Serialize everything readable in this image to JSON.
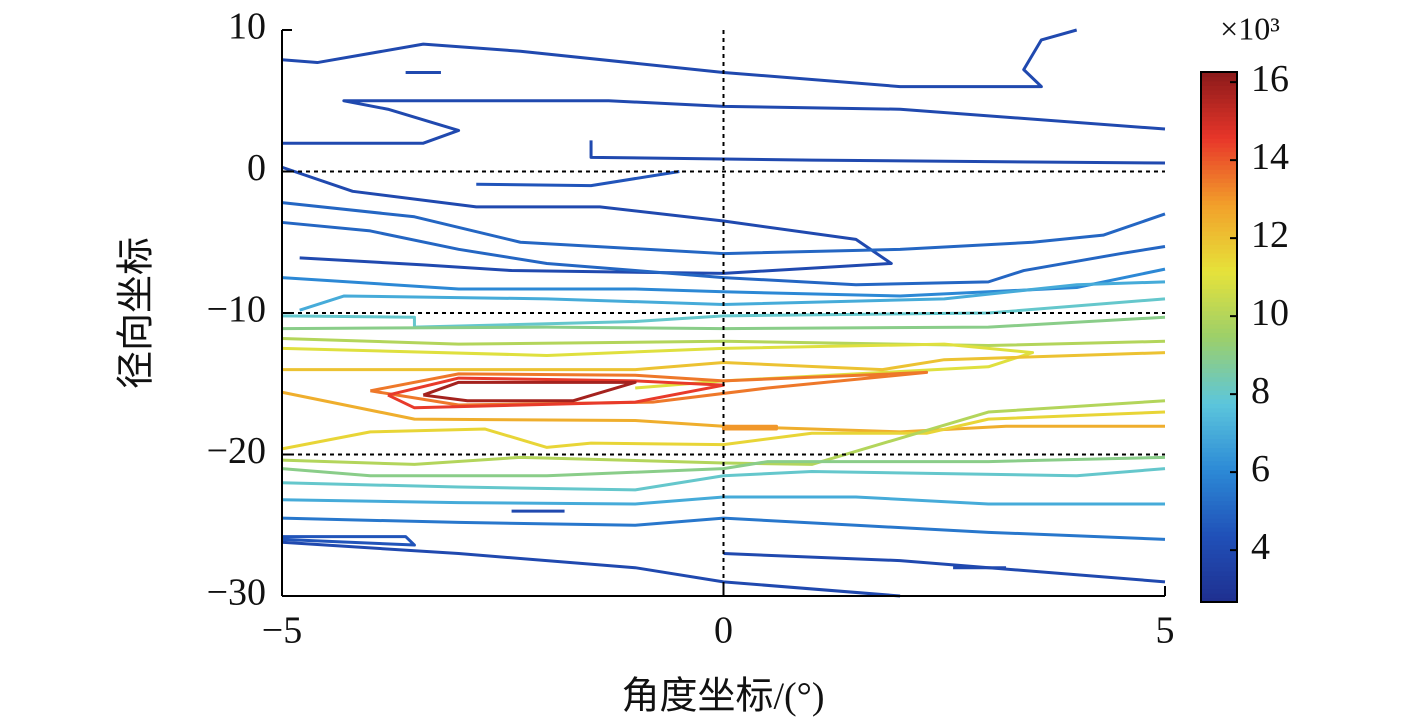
{
  "chart_data": {
    "type": "contour",
    "x_label": "角度坐标/(°)",
    "y_label": "径向坐标",
    "colorbar_label": "×10³",
    "xlim": [
      -5,
      5
    ],
    "ylim": [
      -30,
      10
    ],
    "xticks": [
      {
        "value": -5,
        "label": "−5"
      },
      0,
      5
    ],
    "yticks": [
      10,
      0,
      {
        "value": -10,
        "label": "−10"
      },
      {
        "value": -20,
        "label": "−20"
      },
      {
        "value": -30,
        "label": "−30"
      }
    ],
    "clim": [
      2.67,
      16.26
    ],
    "cticks": [
      4,
      6,
      8,
      10,
      12,
      14,
      16
    ],
    "colormap": [
      "#1f2f8f",
      "#2050b8",
      "#2c8ad6",
      "#5cc6dc",
      "#9ccf6a",
      "#e6e23a",
      "#f2a02a",
      "#e8362a",
      "#8b1a1a"
    ],
    "reference_lines": {
      "x": [
        0
      ],
      "y": [
        0,
        -10,
        -20
      ]
    },
    "contours": [
      {
        "level": 4,
        "x": [
          -5,
          -4.6,
          -3.4,
          -2.3,
          0,
          2,
          3.6,
          3.4,
          3.6,
          4.0
        ],
        "y": [
          7.9,
          7.7,
          9.0,
          8.5,
          7.0,
          6.0,
          6.0,
          7.2,
          9.3,
          10
        ]
      },
      {
        "level": 4,
        "x": [
          -5,
          -3.4,
          -3.0,
          -3.8,
          -4.3,
          -1.3,
          0,
          2,
          5
        ],
        "y": [
          2.0,
          2.0,
          2.9,
          4.4,
          5.0,
          5.0,
          4.6,
          4.4,
          3.0
        ]
      },
      {
        "level": 4,
        "x": [
          -1.5,
          -1.5,
          1,
          5
        ],
        "y": [
          2.2,
          1.0,
          0.8,
          0.6
        ]
      },
      {
        "level": 4,
        "x": [
          -5,
          -4.2,
          -2.8,
          -1.4,
          0,
          1.5,
          1.9,
          0,
          -2.4,
          -3.4,
          -4.8
        ],
        "y": [
          0.3,
          -1.4,
          -2.5,
          -2.5,
          -3.5,
          -4.8,
          -6.5,
          -7.2,
          -7.0,
          -6.6,
          -6.1
        ]
      },
      {
        "level": 4.5,
        "x": [
          -2.8,
          -1.5,
          -0.5
        ],
        "y": [
          -0.9,
          -1.0,
          0
        ]
      },
      {
        "level": 5,
        "x": [
          -5,
          -3.5,
          -2.3,
          0,
          2,
          3.5,
          4.3,
          5
        ],
        "y": [
          -2.2,
          -3.2,
          -5.0,
          -5.8,
          -5.5,
          -5.0,
          -4.5,
          -3.0
        ]
      },
      {
        "level": 5,
        "x": [
          -5,
          -4,
          -3,
          -2,
          -1,
          0,
          1.5,
          3,
          3.4,
          4.5,
          5
        ],
        "y": [
          -3.6,
          -4.2,
          -5.5,
          -6.5,
          -7.0,
          -7.5,
          -8.0,
          -7.8,
          -7.0,
          -5.8,
          -5.3
        ]
      },
      {
        "level": 6,
        "x": [
          -5,
          -3,
          -1,
          0,
          2,
          4,
          5
        ],
        "y": [
          -7.5,
          -8.3,
          -8.3,
          -8.5,
          -8.8,
          -8.2,
          -6.9
        ]
      },
      {
        "level": 7,
        "x": [
          -4.8,
          -4.3,
          -2,
          0,
          2.5,
          4,
          5
        ],
        "y": [
          -9.8,
          -8.8,
          -9.0,
          -9.4,
          -9.0,
          -8.0,
          -7.8
        ]
      },
      {
        "level": 8,
        "x": [
          -5,
          -3.5,
          -3.5,
          -1,
          0,
          3,
          5
        ],
        "y": [
          -10.2,
          -10.3,
          -11.0,
          -10.6,
          -10.2,
          -10.0,
          -9.0
        ]
      },
      {
        "level": 9,
        "x": [
          -5,
          -2,
          0,
          3,
          5
        ],
        "y": [
          -11.1,
          -11.0,
          -11.1,
          -11.0,
          -10.3
        ]
      },
      {
        "level": 10,
        "x": [
          -5,
          -3,
          0,
          3,
          5
        ],
        "y": [
          -11.8,
          -12.2,
          -12.0,
          -12.3,
          -12.0
        ]
      },
      {
        "level": 11,
        "x": [
          -5,
          -2,
          0,
          2.5,
          3.5,
          3,
          1.5,
          0,
          -1
        ],
        "y": [
          -12.5,
          -13.0,
          -12.5,
          -12.2,
          -12.8,
          -13.8,
          -14.3,
          -14.8,
          -15.3
        ]
      },
      {
        "level": 12,
        "x": [
          -5,
          -3,
          -1,
          0,
          1.8,
          2.5,
          5
        ],
        "y": [
          -14.0,
          -14.0,
          -14.0,
          -13.5,
          -14.0,
          -13.3,
          -12.8
        ]
      },
      {
        "level": 13.5,
        "x": [
          -4,
          -3,
          -1,
          0,
          2.3,
          0.5,
          -0.8,
          -3,
          -4
        ],
        "y": [
          -15.5,
          -14.3,
          -14.4,
          -14.8,
          -14.2,
          -15.3,
          -16.3,
          -16.5,
          -15.5
        ]
      },
      {
        "level": 14.5,
        "x": [
          -3.8,
          -3,
          -1,
          0,
          -1,
          -3.5,
          -3.8
        ],
        "y": [
          -15.8,
          -14.6,
          -14.8,
          -15.1,
          -16.3,
          -16.7,
          -15.8
        ]
      },
      {
        "level": 15.8,
        "x": [
          -3.4,
          -3,
          -1,
          -1.7,
          -2.9,
          -3.4
        ],
        "y": [
          -15.8,
          -14.9,
          -14.9,
          -16.2,
          -16.2,
          -15.8
        ]
      },
      {
        "level": 12.5,
        "x": [
          -5,
          -3.5,
          -1,
          0,
          2,
          3.2,
          5
        ],
        "y": [
          -15.6,
          -17.5,
          -17.6,
          -18.0,
          -18.4,
          -18.0,
          -18.0
        ]
      },
      {
        "level": 13,
        "x": [
          0,
          0.6,
          0.6,
          0,
          0
        ],
        "y": [
          -18.0,
          -18.0,
          -18.2,
          -18.2,
          -18.0
        ]
      },
      {
        "level": 11.5,
        "x": [
          -5,
          -4,
          -2.7,
          -2,
          -1.5,
          0,
          1,
          2.3,
          3,
          5
        ],
        "y": [
          -19.6,
          -18.4,
          -18.2,
          -19.5,
          -19.2,
          -19.3,
          -18.5,
          -18.5,
          -17.5,
          -17.0
        ]
      },
      {
        "level": 10,
        "x": [
          -5,
          -3.5,
          -2.3,
          0,
          1,
          3,
          5
        ],
        "y": [
          -20.4,
          -20.7,
          -20.2,
          -20.6,
          -20.7,
          -17.0,
          -16.2
        ]
      },
      {
        "level": 9,
        "x": [
          -5,
          -4,
          -2,
          0,
          0.5,
          3,
          5
        ],
        "y": [
          -21.0,
          -21.5,
          -21.5,
          -21.0,
          -20.5,
          -20.5,
          -20.2
        ]
      },
      {
        "level": 8,
        "x": [
          -5,
          -3,
          -1,
          0,
          1,
          4,
          5
        ],
        "y": [
          -22.0,
          -22.3,
          -22.5,
          -21.5,
          -21.2,
          -21.5,
          -21.0
        ]
      },
      {
        "level": 7,
        "x": [
          -5,
          -3,
          -1,
          0,
          1.5,
          3,
          5
        ],
        "y": [
          -23.2,
          -23.4,
          -23.5,
          -23.0,
          -23.0,
          -23.5,
          -23.5
        ]
      },
      {
        "level": 5.5,
        "x": [
          -5,
          -3,
          -1,
          0,
          1.5,
          3,
          5
        ],
        "y": [
          -24.5,
          -24.8,
          -25.0,
          -24.5,
          -25.0,
          -25.5,
          -26.0
        ]
      },
      {
        "level": 4.5,
        "x": [
          -5,
          -3.5,
          -3.6,
          -5
        ],
        "y": [
          -26.0,
          -26.4,
          -25.8,
          -25.8
        ]
      },
      {
        "level": 4,
        "x": [
          -5,
          -3,
          -1,
          0,
          2
        ],
        "y": [
          -26.2,
          -27.0,
          -28.0,
          -29.0,
          -30
        ]
      },
      {
        "level": 4,
        "x": [
          0,
          2,
          4,
          5
        ],
        "y": [
          -27.0,
          -27.5,
          -28.5,
          -29.0
        ]
      },
      {
        "level": 4,
        "x": [
          -3.6,
          -3.2
        ],
        "y": [
          7.0,
          7.0
        ]
      },
      {
        "level": 4,
        "x": [
          -2.4,
          -1.8
        ],
        "y": [
          -24.0,
          -24.0
        ]
      },
      {
        "level": 4,
        "x": [
          2.6,
          3.2
        ],
        "y": [
          -28.0,
          -28.0
        ]
      }
    ]
  }
}
